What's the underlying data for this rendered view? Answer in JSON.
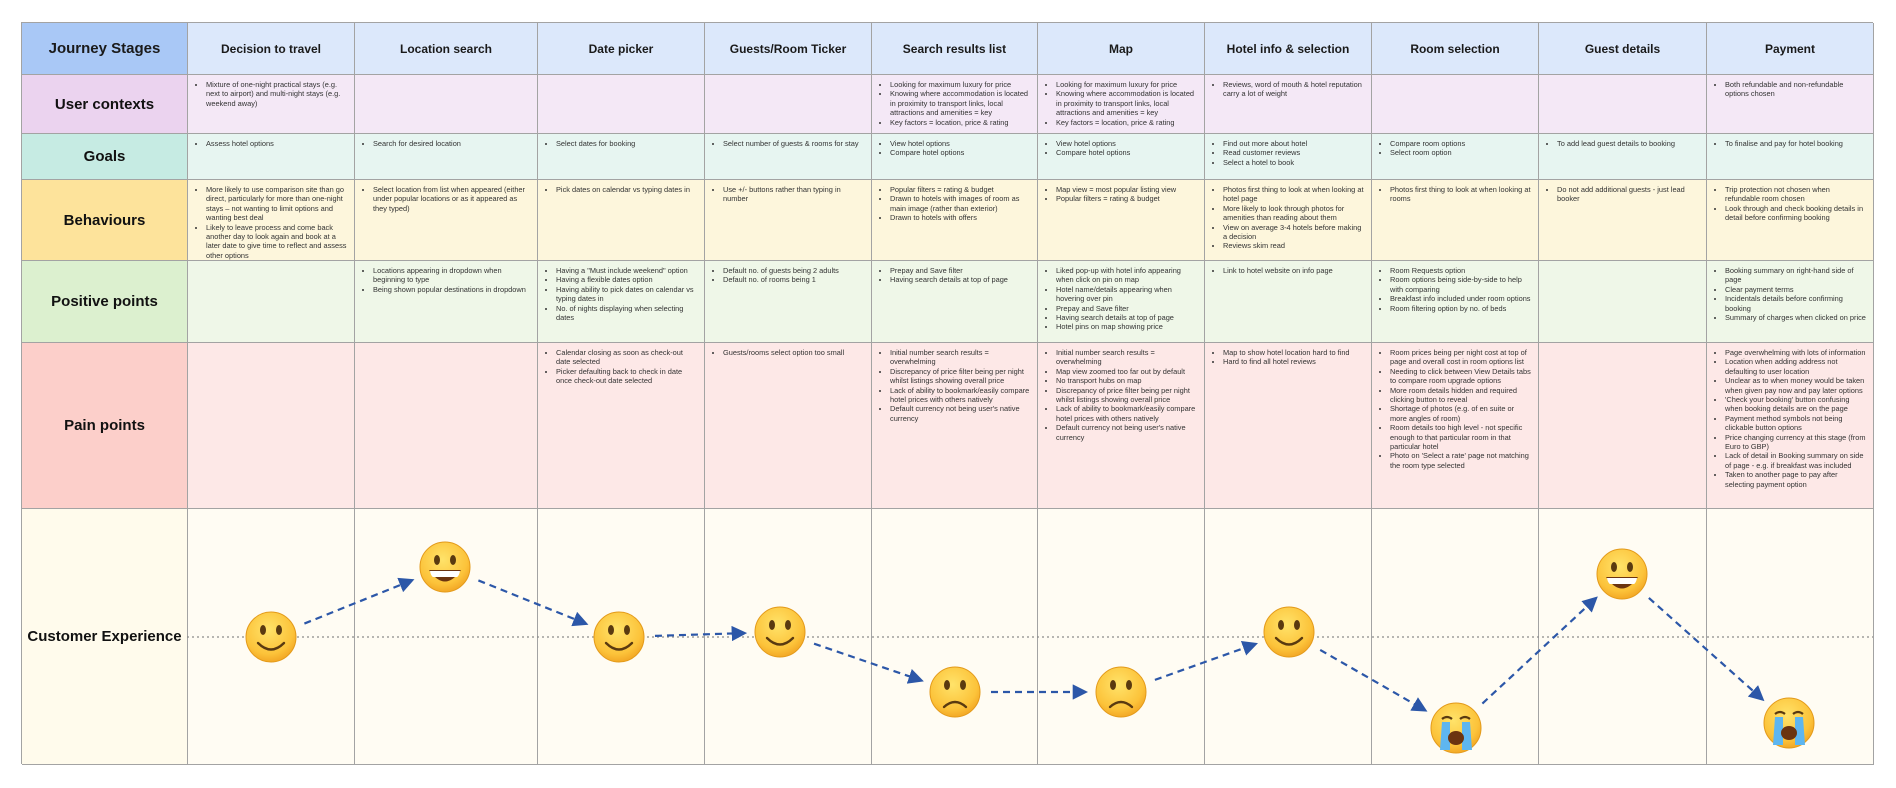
{
  "header": {
    "label": "Journey Stages"
  },
  "stages": [
    "Decision to travel",
    "Location search",
    "Date picker",
    "Guests/Room Ticker",
    "Search results list",
    "Map",
    "Hotel info & selection",
    "Room selection",
    "Guest details",
    "Payment"
  ],
  "rows": [
    {
      "label": "User contexts",
      "cells": [
        [
          "Mixture of one-night practical stays (e.g. next to airport) and multi-night stays (e.g. weekend away)"
        ],
        [],
        [],
        [],
        [
          "Looking for maximum luxury for price",
          "Knowing where accommodation is located in proximity to transport links, local attractions and amenities = key",
          "Key factors = location, price & rating"
        ],
        [
          "Looking for maximum luxury for price",
          "Knowing where accommodation is located in proximity to transport links, local attractions and amenities = key",
          "Key factors = location, price & rating"
        ],
        [
          "Reviews, word of mouth & hotel reputation carry a lot of weight"
        ],
        [],
        [],
        [
          "Both refundable and non-refundable options chosen"
        ]
      ]
    },
    {
      "label": "Goals",
      "cells": [
        [
          "Assess hotel options"
        ],
        [
          "Search for desired location"
        ],
        [
          "Select dates for booking"
        ],
        [
          "Select number of guests & rooms for stay"
        ],
        [
          "View hotel options",
          "Compare hotel options"
        ],
        [
          "View hotel options",
          "Compare hotel options"
        ],
        [
          "Find out more about hotel",
          "Read customer reviews",
          "Select a hotel to book"
        ],
        [
          "Compare room options",
          "Select room option"
        ],
        [
          "To add lead guest details to booking"
        ],
        [
          "To finalise and pay for hotel booking"
        ]
      ]
    },
    {
      "label": "Behaviours",
      "cells": [
        [
          "More likely to use comparison site than go direct, particularly for more than one-night stays – not wanting to limit options and wanting best deal",
          "Likely to leave process and come back another day to look again and book at a later date to give time to reflect and assess other options"
        ],
        [
          "Select location from list when appeared (either under popular locations or as it appeared as they typed)"
        ],
        [
          "Pick dates on calendar vs typing dates in"
        ],
        [
          "Use +/- buttons rather than typing in number"
        ],
        [
          "Popular filters = rating & budget",
          "Drawn to hotels with images of room as main image (rather than exterior)",
          "Drawn to hotels with offers"
        ],
        [
          "Map view = most popular listing view",
          "Popular filters = rating & budget"
        ],
        [
          "Photos first thing to look at when looking at hotel page",
          "More likely to look through photos for amenities than reading about them",
          "View on average 3-4 hotels before making a decision",
          "Reviews skim read"
        ],
        [
          "Photos first thing to look at when looking at rooms"
        ],
        [
          "Do not add additional guests - just lead booker"
        ],
        [
          "Trip protection not chosen when refundable room chosen",
          "Look through and check booking details in detail before confirming booking"
        ]
      ]
    },
    {
      "label": "Positive points",
      "cells": [
        [],
        [
          "Locations appearing in dropdown when beginning to type",
          "Being shown popular destinations in dropdown"
        ],
        [
          "Having a \"Must include weekend\" option",
          "Having a flexible dates option",
          "Having ability to pick dates on calendar vs typing dates in",
          "No. of nights displaying when selecting dates"
        ],
        [
          "Default no. of guests being 2 adults",
          "Default no. of rooms being 1"
        ],
        [
          "Prepay and Save filter",
          "Having search details at top of page"
        ],
        [
          "Liked pop-up with hotel info appearing when click on pin on map",
          "Hotel name/details appearing when hovering over pin",
          "Prepay and Save filter",
          "Having search details at top of page",
          "Hotel pins on map showing price"
        ],
        [
          "Link to hotel website on info page"
        ],
        [
          "Room Requests option",
          "Room options being side-by-side to help with comparing",
          "Breakfast info included under room options",
          "Room filtering option by no. of beds"
        ],
        [],
        [
          "Booking summary on right-hand side of page",
          "Clear payment terms",
          "Incidentals details before confirming booking",
          "Summary of charges when clicked on price"
        ]
      ]
    },
    {
      "label": "Pain points",
      "cells": [
        [],
        [],
        [
          "Calendar closing as soon as check-out date selected",
          "Picker defaulting back to check in date once check-out date selected"
        ],
        [
          "Guests/rooms select option too small"
        ],
        [
          "Initial number search results = overwhelming",
          "Discrepancy of price filter being per night whilst listings showing overall price",
          "Lack of ability to bookmark/easily compare hotel prices with others natively",
          "Default currency not being user's native currency"
        ],
        [
          "Initial number search results = overwhelming",
          "Map view zoomed too far out by default",
          "No transport hubs on map",
          "Discrepancy of price filter being per night whilst listings showing overall price",
          "Lack of ability to bookmark/easily compare hotel prices with others natively",
          "Default currency not being user's native currency"
        ],
        [
          "Map to show hotel location hard to find",
          "Hard to find all hotel reviews"
        ],
        [
          "Room prices being per night cost at top of page and overall cost in room options list",
          "Needing to click between View Details tabs to compare room upgrade options",
          "More room details hidden and required clicking button to reveal",
          "Shortage of photos (e.g. of en suite or more angles of room)",
          "Room details too high level - not specific enough to that particular room in that particular hotel",
          "Photo on 'Select a rate' page not matching the room type selected"
        ],
        [],
        [
          "Page overwhelming with lots of information",
          "Location when adding address not defaulting to user location",
          "Unclear as to when money would be taken when given pay now and pay later options",
          "'Check your booking' button confusing when booking details are on the page",
          "Payment method symbols not being clickable button options",
          "Price changing currency at this stage (from Euro to GBP)",
          "Lack of detail in Booking summary on side of page - e.g. if breakfast was included",
          "Taken to another page to pay after selecting payment option"
        ]
      ]
    }
  ],
  "experience": {
    "label": "Customer Experience"
  }
}
